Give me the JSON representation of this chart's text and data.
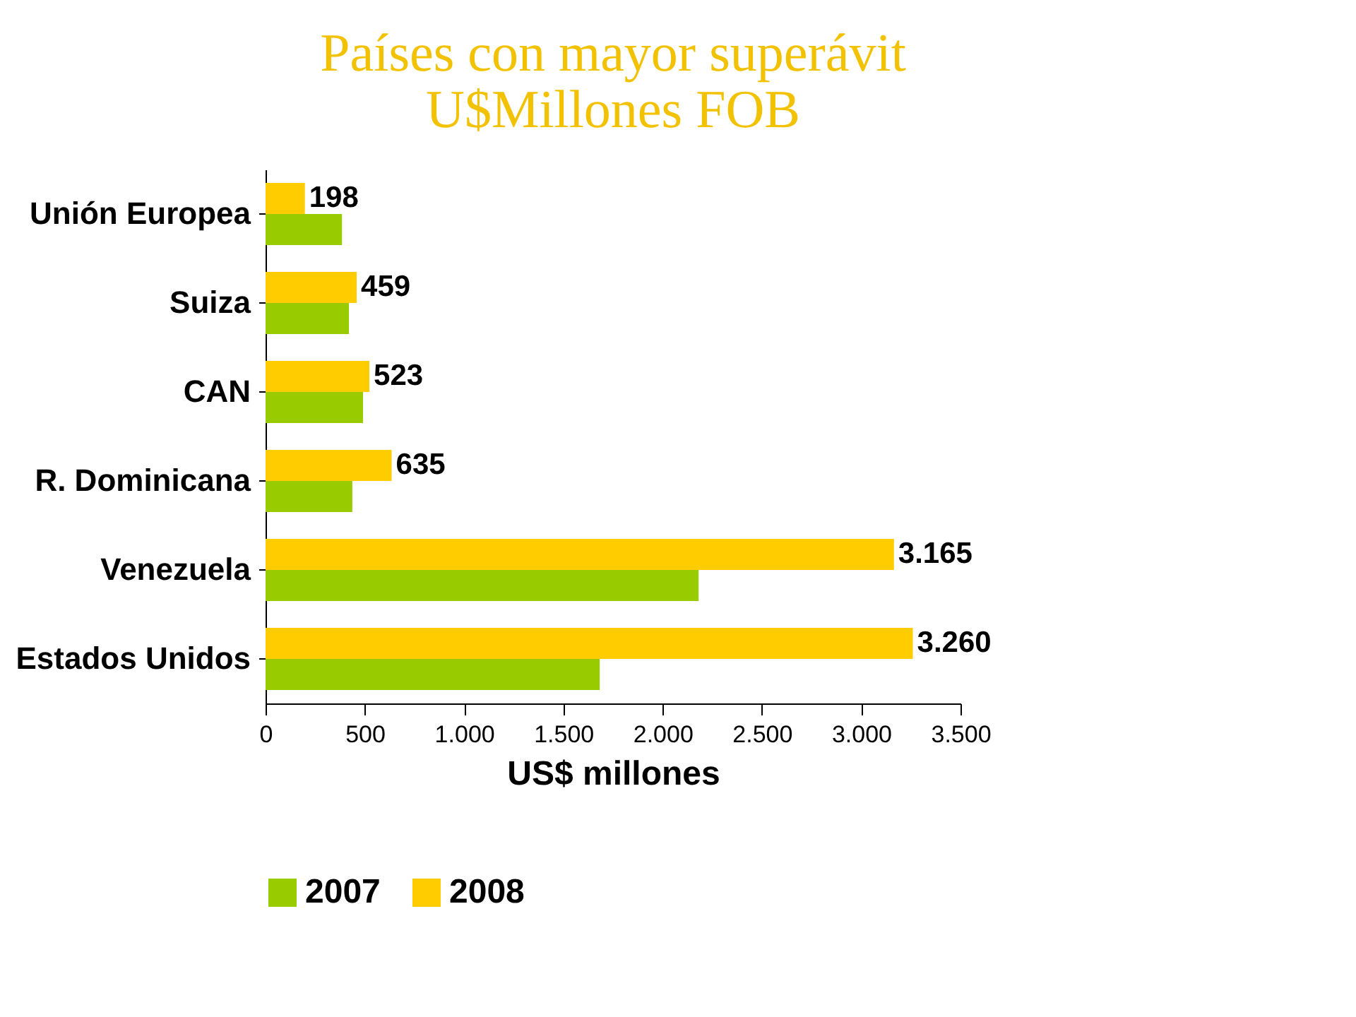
{
  "chart_data": {
    "type": "bar",
    "orientation": "horizontal",
    "title": "Países con mayor superávit",
    "subtitle": "U$Millones FOB",
    "xlabel": "US$ millones",
    "categories": [
      "Unión Europea",
      "Suiza",
      "CAN",
      "R. Dominicana",
      "Venezuela",
      "Estados Unidos"
    ],
    "series": [
      {
        "name": "2007",
        "color": "#99cc00",
        "values": [
          385,
          420,
          491,
          437,
          2181,
          1683
        ]
      },
      {
        "name": "2008",
        "color": "#ffcc00",
        "values": [
          198,
          459,
          523,
          635,
          3165,
          3260
        ],
        "value_labels": [
          "198",
          "459",
          "523",
          "635",
          "3.165",
          "3.260"
        ]
      }
    ],
    "xlim": [
      0,
      3500
    ],
    "xticks": [
      0,
      500,
      {
        "value": 1000,
        "label": "1.000"
      },
      {
        "value": 1500,
        "label": "1.500"
      },
      {
        "value": 2000,
        "label": "2.000"
      },
      {
        "value": 2500,
        "label": "2.500"
      },
      {
        "value": 3000,
        "label": "3.000"
      },
      {
        "value": 3500,
        "label": "3.500"
      }
    ],
    "grid": false,
    "legend": "bottom"
  }
}
